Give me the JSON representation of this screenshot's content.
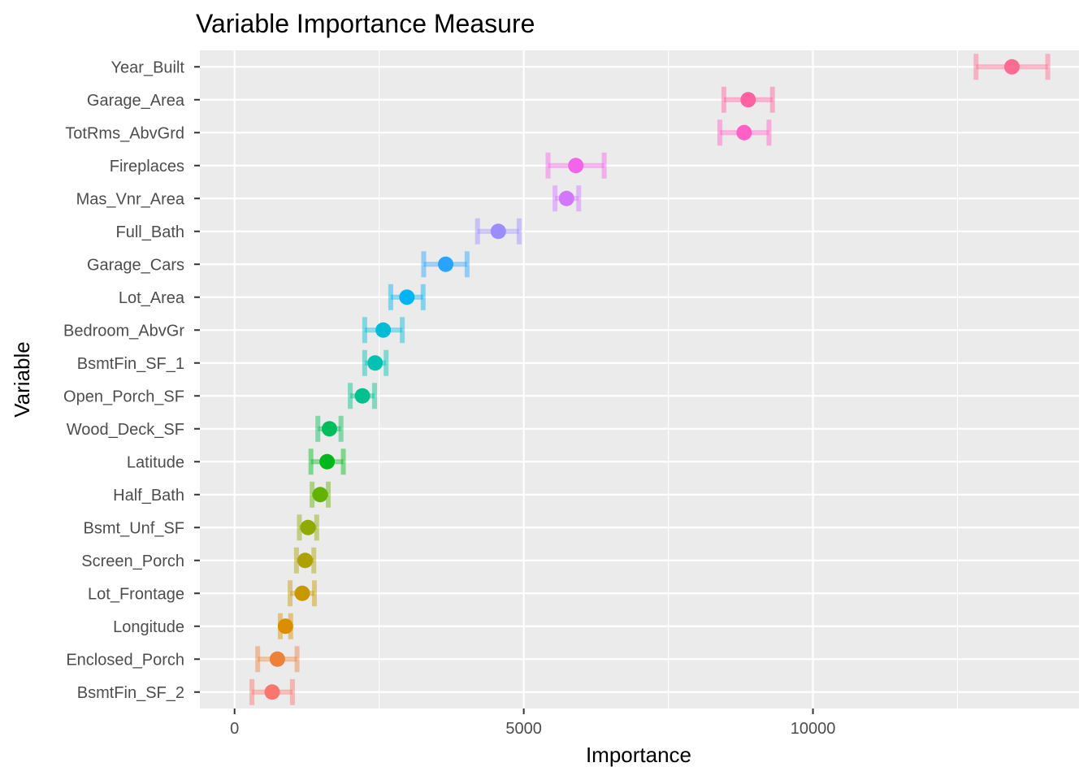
{
  "chart_data": {
    "type": "scatter",
    "title": "Variable Importance Measure",
    "xlabel": "Importance",
    "ylabel": "Variable",
    "xlim": [
      -600,
      14600
    ],
    "xticks": [
      0,
      5000,
      10000
    ],
    "grid": true,
    "legend": "none",
    "errorbar_opacity": 0.45,
    "variables": [
      {
        "name": "BsmtFin_SF_2",
        "importance": 650,
        "lower": 300,
        "upper": 1000,
        "color": "#F8766D"
      },
      {
        "name": "Enclosed_Porch",
        "importance": 740,
        "lower": 400,
        "upper": 1080,
        "color": "#EC8239"
      },
      {
        "name": "Longitude",
        "importance": 880,
        "lower": 790,
        "upper": 970,
        "color": "#DB8E00"
      },
      {
        "name": "Lot_Frontage",
        "importance": 1170,
        "lower": 960,
        "upper": 1380,
        "color": "#C79800"
      },
      {
        "name": "Screen_Porch",
        "importance": 1220,
        "lower": 1070,
        "upper": 1370,
        "color": "#AEA200"
      },
      {
        "name": "Bsmt_Unf_SF",
        "importance": 1270,
        "lower": 1120,
        "upper": 1420,
        "color": "#8FAA00"
      },
      {
        "name": "Half_Bath",
        "importance": 1480,
        "lower": 1340,
        "upper": 1620,
        "color": "#64B200"
      },
      {
        "name": "Latitude",
        "importance": 1600,
        "lower": 1320,
        "upper": 1880,
        "color": "#00B81B"
      },
      {
        "name": "Wood_Deck_SF",
        "importance": 1640,
        "lower": 1440,
        "upper": 1840,
        "color": "#00BD5C"
      },
      {
        "name": "Open_Porch_SF",
        "importance": 2210,
        "lower": 2000,
        "upper": 2420,
        "color": "#00C08D"
      },
      {
        "name": "BsmtFin_SF_1",
        "importance": 2430,
        "lower": 2250,
        "upper": 2620,
        "color": "#00C1B2"
      },
      {
        "name": "Bedroom_AbvGr",
        "importance": 2570,
        "lower": 2250,
        "upper": 2900,
        "color": "#00BCD6"
      },
      {
        "name": "Lot_Area",
        "importance": 2980,
        "lower": 2700,
        "upper": 3260,
        "color": "#00B3F2"
      },
      {
        "name": "Garage_Cars",
        "importance": 3650,
        "lower": 3270,
        "upper": 4020,
        "color": "#29A3FF"
      },
      {
        "name": "Full_Bath",
        "importance": 4560,
        "lower": 4200,
        "upper": 4920,
        "color": "#9C8DFF"
      },
      {
        "name": "Mas_Vnr_Area",
        "importance": 5740,
        "lower": 5540,
        "upper": 5950,
        "color": "#D277FF"
      },
      {
        "name": "Fireplaces",
        "importance": 5900,
        "lower": 5420,
        "upper": 6390,
        "color": "#F166E8"
      },
      {
        "name": "TotRms_AbvGrd",
        "importance": 8810,
        "lower": 8390,
        "upper": 9240,
        "color": "#FF61C7"
      },
      {
        "name": "Garage_Area",
        "importance": 8880,
        "lower": 8460,
        "upper": 9300,
        "color": "#FF62A0"
      },
      {
        "name": "Year_Built",
        "importance": 13440,
        "lower": 12820,
        "upper": 14060,
        "color": "#FF6C91"
      }
    ]
  }
}
